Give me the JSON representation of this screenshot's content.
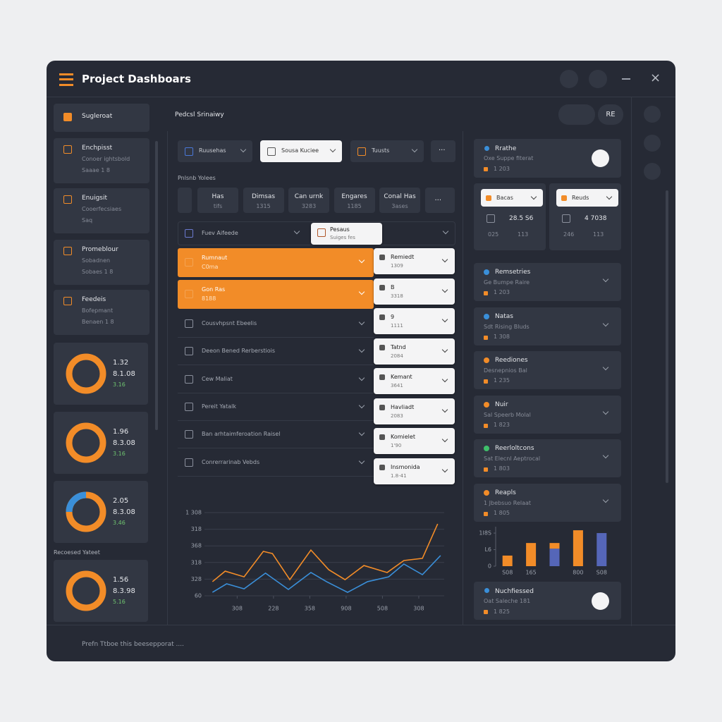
{
  "header": {
    "title": "Project Dashboars"
  },
  "sidebar": {
    "items": [
      {
        "title": "Sugleroat"
      },
      {
        "title": "Enchpisst",
        "subtitle": "Conoer ightsbold",
        "meta": "Saaae 1 8"
      },
      {
        "title": "Enuigsit",
        "subtitle": "Cooerfecsiaes",
        "meta": "Saq"
      },
      {
        "title": "Promeblour",
        "subtitle": "Sobadnen",
        "meta": "Sobaes 1 8"
      },
      {
        "title": "Feedeis",
        "subtitle": "Bofepmant",
        "meta": "Benaen 1 8"
      }
    ],
    "donuts": [
      {
        "lines": [
          "1.32",
          "8.1.08",
          "3.16"
        ]
      },
      {
        "lines": [
          "1.96",
          "8.3.08",
          "3.16"
        ]
      },
      {
        "lines": [
          "2.05",
          "8.3.08",
          "3.46"
        ],
        "accent": "#3a8fd9"
      },
      {
        "lines": [
          "1.56",
          "8.3.98",
          "5.16"
        ]
      }
    ],
    "section_label": "Recoesed Yateet"
  },
  "main": {
    "breadcrumb": "Pedcsl Srinaiwy",
    "button": "RE",
    "toolbar": [
      "Ruusehas",
      "Sousa Kuciee",
      "Tuusts",
      "..."
    ],
    "section_label": "Pnlsnb Yolees",
    "tabs": [
      {
        "title": "Has",
        "sub": "tifs"
      },
      {
        "title": "Dimsas",
        "sub": "1315"
      },
      {
        "title": "Can urnk",
        "sub": "3283"
      },
      {
        "title": "Engares",
        "sub": "1185"
      },
      {
        "title": "Conal Has",
        "sub": "3ases"
      },
      {
        "title": "..."
      }
    ],
    "filter": "Fuev Aifeede",
    "filter_selected": {
      "title": "Pesaus",
      "sub": "Suiges fes"
    },
    "highlight_rows": [
      {
        "title": "Rumnaut",
        "sub": "C0ma"
      },
      {
        "title": "Gon Ras",
        "sub": "8188"
      }
    ],
    "rows": [
      "Cousvhpsnt Ebeelis",
      "Deeon Bened Rerberstiois",
      "Cew Maliat",
      "Pereit Yatalk",
      "Ban arhtaimferoation Raisel",
      "Conrerrarinab Vebds"
    ],
    "cards": [
      {
        "title": "Remiedt",
        "sub": "1309"
      },
      {
        "title": "B",
        "sub": "3318"
      },
      {
        "title": "9",
        "sub": "1111"
      },
      {
        "title": "Tatnd",
        "sub": "2084"
      },
      {
        "title": "Kemant",
        "sub": "3641"
      },
      {
        "title": "Havliadt",
        "sub": "2083"
      },
      {
        "title": "Komielet",
        "sub": "1'90"
      },
      {
        "title": "Insmonida",
        "sub": "1.8-41"
      }
    ]
  },
  "chart": {
    "type": "line",
    "xlim": [
      -0.9,
      5.7
    ],
    "xticks": [
      {
        "value": 0,
        "label": "308"
      },
      {
        "value": 1,
        "label": "228"
      },
      {
        "value": 2,
        "label": "358"
      },
      {
        "value": 3,
        "label": "908"
      },
      {
        "value": 4,
        "label": "508"
      },
      {
        "value": 5,
        "label": "308"
      }
    ],
    "ylim": [
      0,
      5
    ],
    "yticks": [
      {
        "value": 0,
        "label": "60"
      },
      {
        "value": 1,
        "label": "328"
      },
      {
        "value": 2,
        "label": "318"
      },
      {
        "value": 3,
        "label": "368"
      },
      {
        "value": 4,
        "label": "318"
      },
      {
        "value": 5,
        "label": "1 308"
      }
    ],
    "grid": true,
    "series": [
      {
        "color": "#f28c28",
        "x": [
          -0.68,
          -0.33,
          0.19,
          0.72,
          0.97,
          1.45,
          2.03,
          2.52,
          2.97,
          3.49,
          4.13,
          4.59,
          5.1,
          5.52
        ],
        "values": [
          0.85,
          1.48,
          1.14,
          2.67,
          2.54,
          0.97,
          2.75,
          1.57,
          0.97,
          1.82,
          1.4,
          2.12,
          2.25,
          4.32
        ]
      },
      {
        "color": "#3a8fd9",
        "x": [
          -0.68,
          -0.29,
          0.19,
          0.78,
          1.41,
          2.03,
          2.46,
          3.04,
          3.59,
          4.17,
          4.59,
          5.1,
          5.6
        ],
        "values": [
          0.21,
          0.72,
          0.42,
          1.36,
          0.38,
          1.4,
          0.85,
          0.21,
          0.85,
          1.14,
          1.91,
          1.27,
          2.42
        ]
      }
    ]
  },
  "right": {
    "top_card": {
      "title": "Rrathe",
      "sub": "Oxe Suppe fiterat",
      "meta": "1 203"
    },
    "stats": [
      {
        "dropdown": "Bacas",
        "value": "28.5 S6",
        "foot": [
          "025",
          "113"
        ]
      },
      {
        "dropdown": "Reuds",
        "value": "4 7038",
        "foot": [
          "246",
          "113"
        ]
      }
    ],
    "list": [
      {
        "title": "Remsetries",
        "sub": "Ge Bumpe Raire",
        "meta": "1 203",
        "color": "#3a8fd9"
      },
      {
        "title": "Natas",
        "sub": "Sdt Rising Bluds",
        "meta": "1 308",
        "color": "#3a8fd9"
      },
      {
        "title": "Reediones",
        "sub": "Desnepnios Bal",
        "meta": "1 235",
        "color": "#f28c28"
      },
      {
        "title": "Nuir",
        "sub": "Sal Speerb Molal",
        "meta": "1 823",
        "color": "#f28c28"
      },
      {
        "title": "Reerloltcons",
        "sub": "Sat Elecnl Aeptrocal",
        "meta": "1 803",
        "color": "#3fbf6a"
      },
      {
        "title": "Reapls",
        "sub": "1 Jbebsuo Relaat",
        "meta": "1 805",
        "color": "#f28c28"
      }
    ],
    "bar_chart": {
      "type": "bar",
      "categories": [
        "S08",
        "165",
        null,
        "800",
        "S08"
      ],
      "ylim": [
        0,
        2.3
      ],
      "yticks": [
        0,
        {
          "value": 1,
          "label": "L6"
        },
        {
          "value": 2,
          "label": "1I8S"
        }
      ],
      "series": [
        {
          "color": "#5566b8",
          "values": [
            null,
            null,
            1.06,
            null,
            2.0
          ]
        },
        {
          "color": "#f28c28",
          "values": [
            0.64,
            1.4,
            0.34,
            2.17,
            null
          ]
        }
      ]
    },
    "bottom_card": {
      "title": "Nuchfiessed",
      "sub": "Oat Saleche 181",
      "meta": "1 825"
    }
  },
  "footer": {
    "text": "Prefn Ttboe this beesepporat ...."
  }
}
